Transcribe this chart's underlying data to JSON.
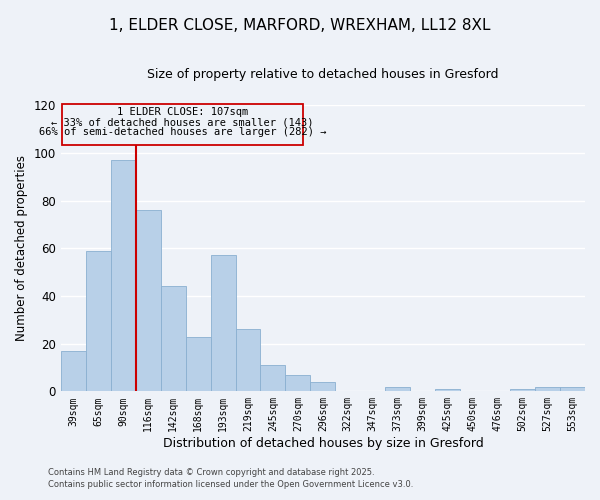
{
  "title": "1, ELDER CLOSE, MARFORD, WREXHAM, LL12 8XL",
  "subtitle": "Size of property relative to detached houses in Gresford",
  "xlabel": "Distribution of detached houses by size in Gresford",
  "ylabel": "Number of detached properties",
  "bar_color": "#b8d0e8",
  "bar_edge_color": "#8aafd0",
  "bg_color": "#eef2f8",
  "categories": [
    "39sqm",
    "65sqm",
    "90sqm",
    "116sqm",
    "142sqm",
    "168sqm",
    "193sqm",
    "219sqm",
    "245sqm",
    "270sqm",
    "296sqm",
    "322sqm",
    "347sqm",
    "373sqm",
    "399sqm",
    "425sqm",
    "450sqm",
    "476sqm",
    "502sqm",
    "527sqm",
    "553sqm"
  ],
  "values": [
    17,
    59,
    97,
    76,
    44,
    23,
    57,
    26,
    11,
    7,
    4,
    0,
    0,
    2,
    0,
    1,
    0,
    0,
    1,
    2,
    2
  ],
  "ylim": [
    0,
    120
  ],
  "yticks": [
    0,
    20,
    40,
    60,
    80,
    100,
    120
  ],
  "marker_bin_index": 2.5,
  "annotation_line1": "1 ELDER CLOSE: 107sqm",
  "annotation_line2": "← 33% of detached houses are smaller (143)",
  "annotation_line3": "66% of semi-detached houses are larger (282) →",
  "footer1": "Contains HM Land Registry data © Crown copyright and database right 2025.",
  "footer2": "Contains public sector information licensed under the Open Government Licence v3.0.",
  "grid_color": "#ffffff",
  "marker_line_color": "#cc0000"
}
